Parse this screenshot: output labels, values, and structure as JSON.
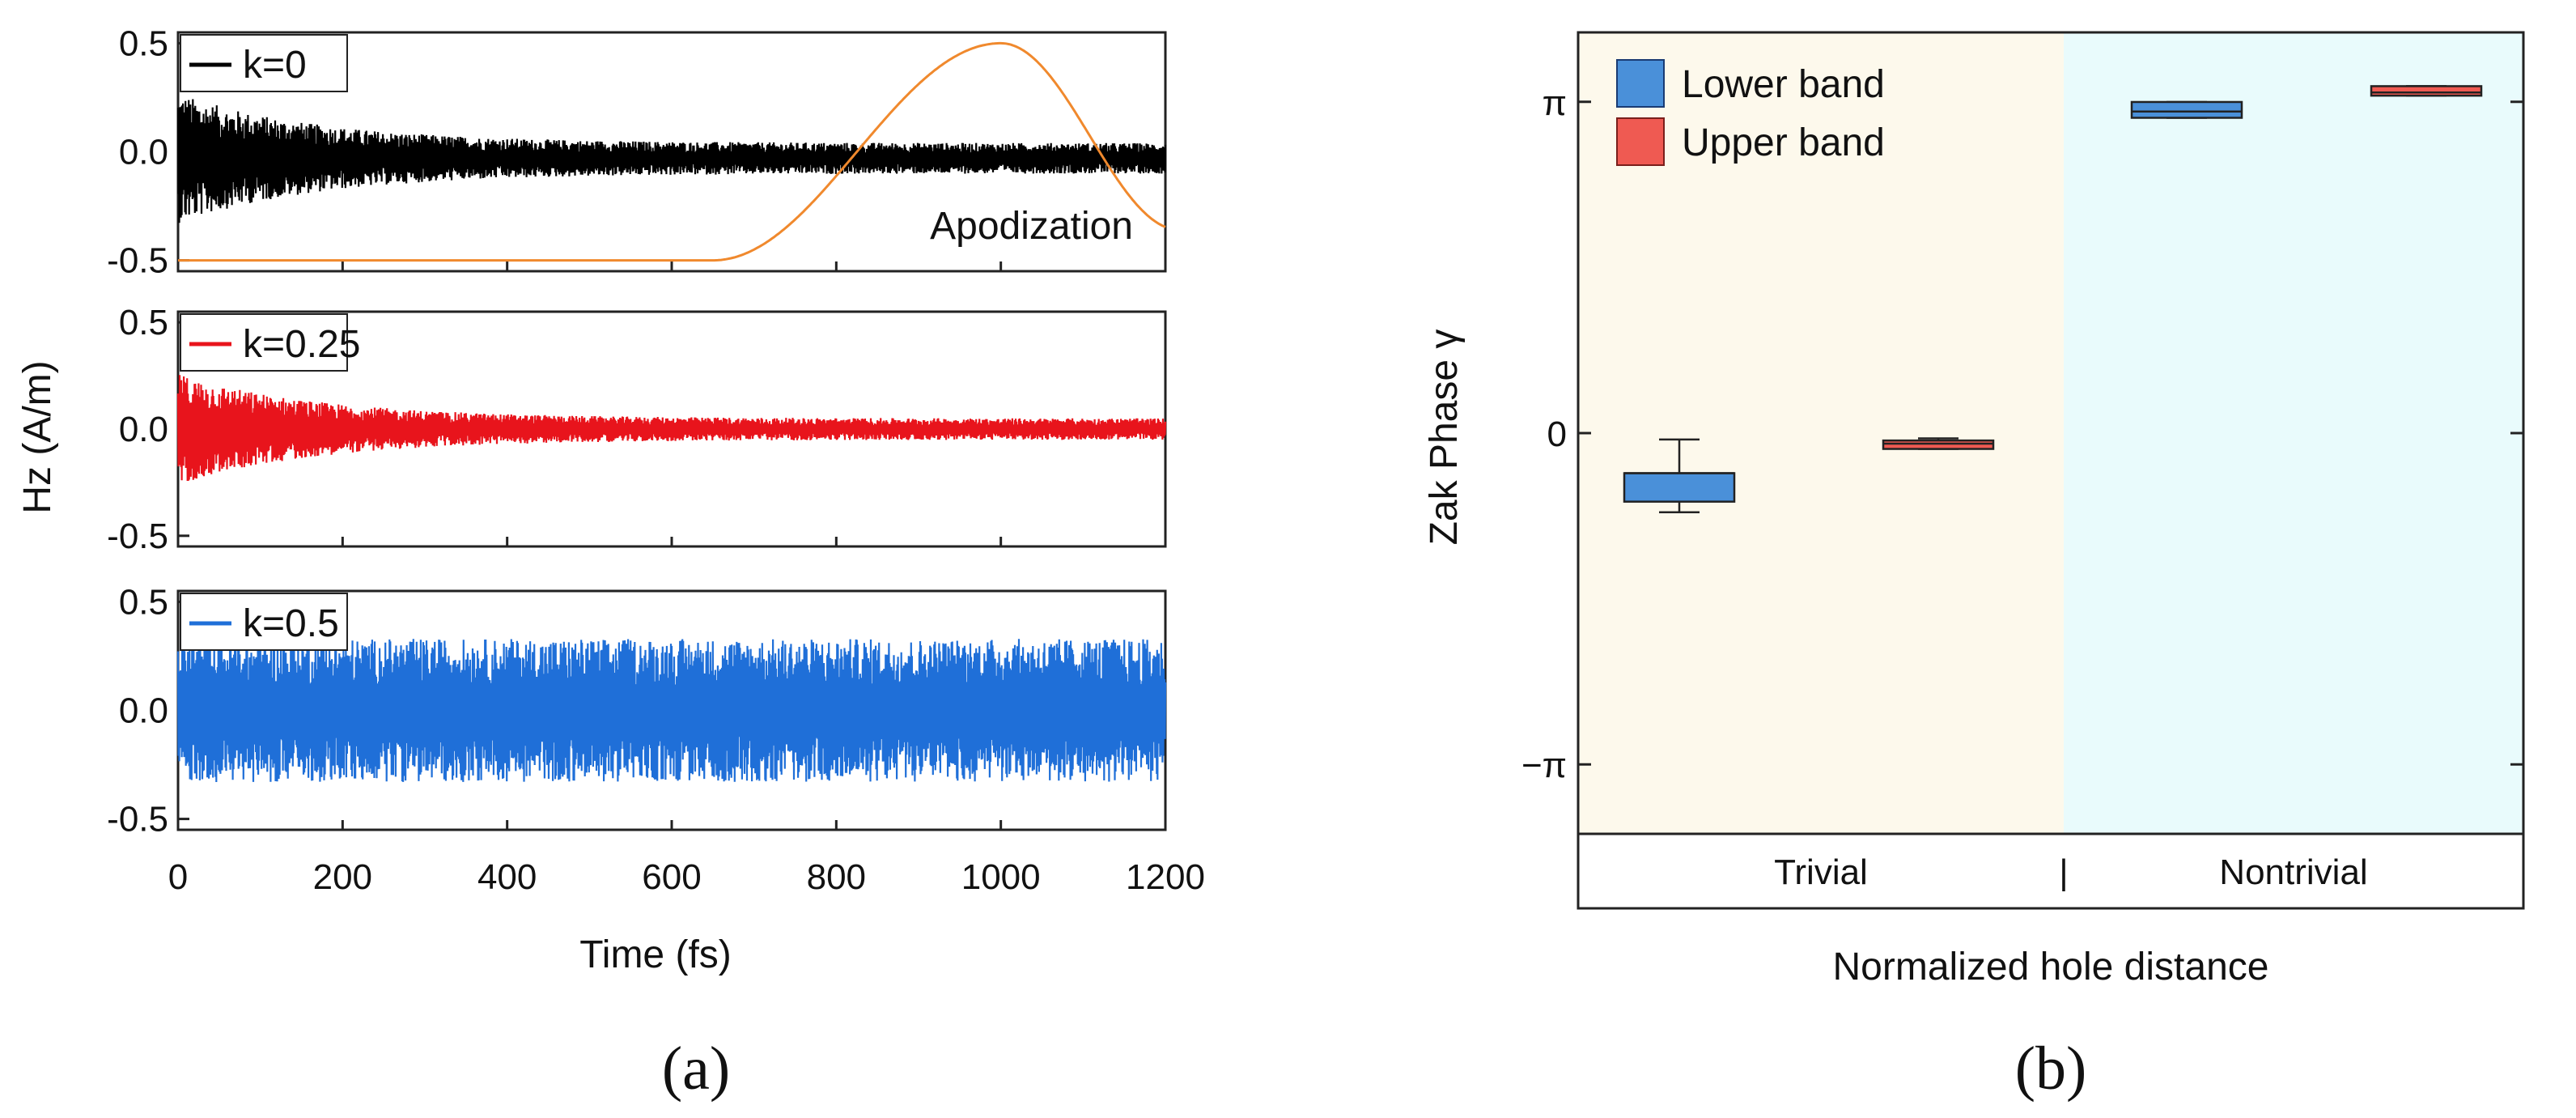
{
  "chart_data": [
    {
      "type": "line",
      "panel_label": "(a)",
      "xlabel": "Time (fs)",
      "ylabel": "Hz (A/m)",
      "xlim": [
        0,
        1200
      ],
      "ylim": [
        -0.55,
        0.55
      ],
      "xticks": [
        0,
        200,
        400,
        600,
        800,
        1000,
        1200
      ],
      "xtick_labels": [
        "0",
        "200",
        "400",
        "600",
        "800",
        "1000",
        "1200"
      ],
      "yticks": [
        0.5,
        0.0,
        -0.5
      ],
      "ytick_labels": [
        "0.5",
        "0.0",
        "-0.5"
      ],
      "grid": false,
      "subplots": [
        {
          "legend": "k=0",
          "color": "#000000",
          "signal": {
            "start_amplitude": 0.3,
            "end_amplitude": 0.07,
            "offset": -0.03,
            "decay": "fast"
          },
          "annotation": "Apodization",
          "apodization": {
            "color": "#f0892d",
            "baseline": -0.5,
            "peak": 0.5,
            "rise_start": 650,
            "peak_x": 1000,
            "end_x": 1200,
            "end_value": -0.36
          }
        },
        {
          "legend": "k=0.25",
          "color": "#e8141c",
          "signal": {
            "start_amplitude": 0.26,
            "end_amplitude": 0.05,
            "offset": 0.0,
            "decay": "fast"
          }
        },
        {
          "legend": "k=0.5",
          "color": "#1f6fd8",
          "signal": {
            "start_amplitude": 0.33,
            "end_amplitude": 0.33,
            "offset": 0.0,
            "decay": "none"
          }
        }
      ]
    },
    {
      "type": "box",
      "panel_label": "(b)",
      "xlabel": "Normalized hole distance",
      "ylabel": "Zak Phase γ",
      "ylim": [
        -3.8,
        3.8
      ],
      "yticks": [
        3.1416,
        0,
        -3.1416
      ],
      "ytick_labels": [
        "π",
        "0",
        "−π"
      ],
      "regions": [
        {
          "label": "Trivial",
          "color": "#fdf9ec"
        },
        {
          "label": "Nontrivial",
          "color": "#e9fbfc"
        }
      ],
      "separator": "|",
      "legend": [
        {
          "name": "Lower band",
          "color": "#4a90d9"
        },
        {
          "name": "Upper band",
          "color": "#ef5a52"
        }
      ],
      "boxes": [
        {
          "region": "Trivial",
          "series": "Lower band",
          "whisker_low": -0.75,
          "q1": -0.65,
          "median": -0.38,
          "q3": -0.38,
          "whisker_high": -0.06
        },
        {
          "region": "Trivial",
          "series": "Upper band",
          "whisker_low": -0.15,
          "q1": -0.15,
          "median": -0.1,
          "q3": -0.07,
          "whisker_high": -0.05
        },
        {
          "region": "Nontrivial",
          "series": "Lower band",
          "whisker_low": 2.99,
          "q1": 2.99,
          "median": 3.05,
          "q3": 3.14,
          "whisker_high": 3.14
        },
        {
          "region": "Nontrivial",
          "series": "Upper band",
          "whisker_low": 3.2,
          "q1": 3.2,
          "median": 3.23,
          "q3": 3.29,
          "whisker_high": 3.29
        }
      ]
    }
  ]
}
